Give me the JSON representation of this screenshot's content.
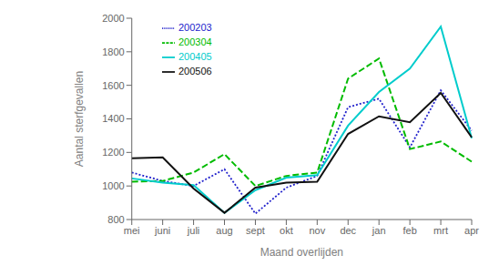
{
  "chart_data": {
    "type": "line",
    "xlabel": "Maand overlijden",
    "ylabel": "Aantal sterfgevallen",
    "categories": [
      "mei",
      "juni",
      "juli",
      "aug",
      "sept",
      "okt",
      "nov",
      "dec",
      "jan",
      "feb",
      "mrt",
      "apr"
    ],
    "series": [
      {
        "name": "200203",
        "color": "#2222cc",
        "line_style": "dotted",
        "values": [
          1080,
          1030,
          1000,
          1100,
          835,
          990,
          1060,
          1470,
          1520,
          1230,
          1570,
          1330
        ]
      },
      {
        "name": "200304",
        "color": "#00bb00",
        "line_style": "dashed",
        "values": [
          1025,
          1030,
          1080,
          1190,
          1000,
          1060,
          1080,
          1640,
          1760,
          1220,
          1265,
          1145
        ]
      },
      {
        "name": "200405",
        "color": "#00cccc",
        "line_style": "solid",
        "values": [
          1045,
          1020,
          1005,
          840,
          975,
          1050,
          1065,
          1360,
          1560,
          1700,
          1950,
          1285
        ]
      },
      {
        "name": "200506",
        "color": "#111111",
        "line_style": "solid",
        "values": [
          1165,
          1170,
          985,
          840,
          990,
          1020,
          1025,
          1310,
          1415,
          1380,
          1555,
          1290
        ]
      }
    ],
    "ylim": [
      800,
      2000
    ],
    "yticks": [
      800,
      1000,
      1200,
      1400,
      1600,
      1800,
      2000
    ],
    "grid": false,
    "legend": "upper left"
  }
}
